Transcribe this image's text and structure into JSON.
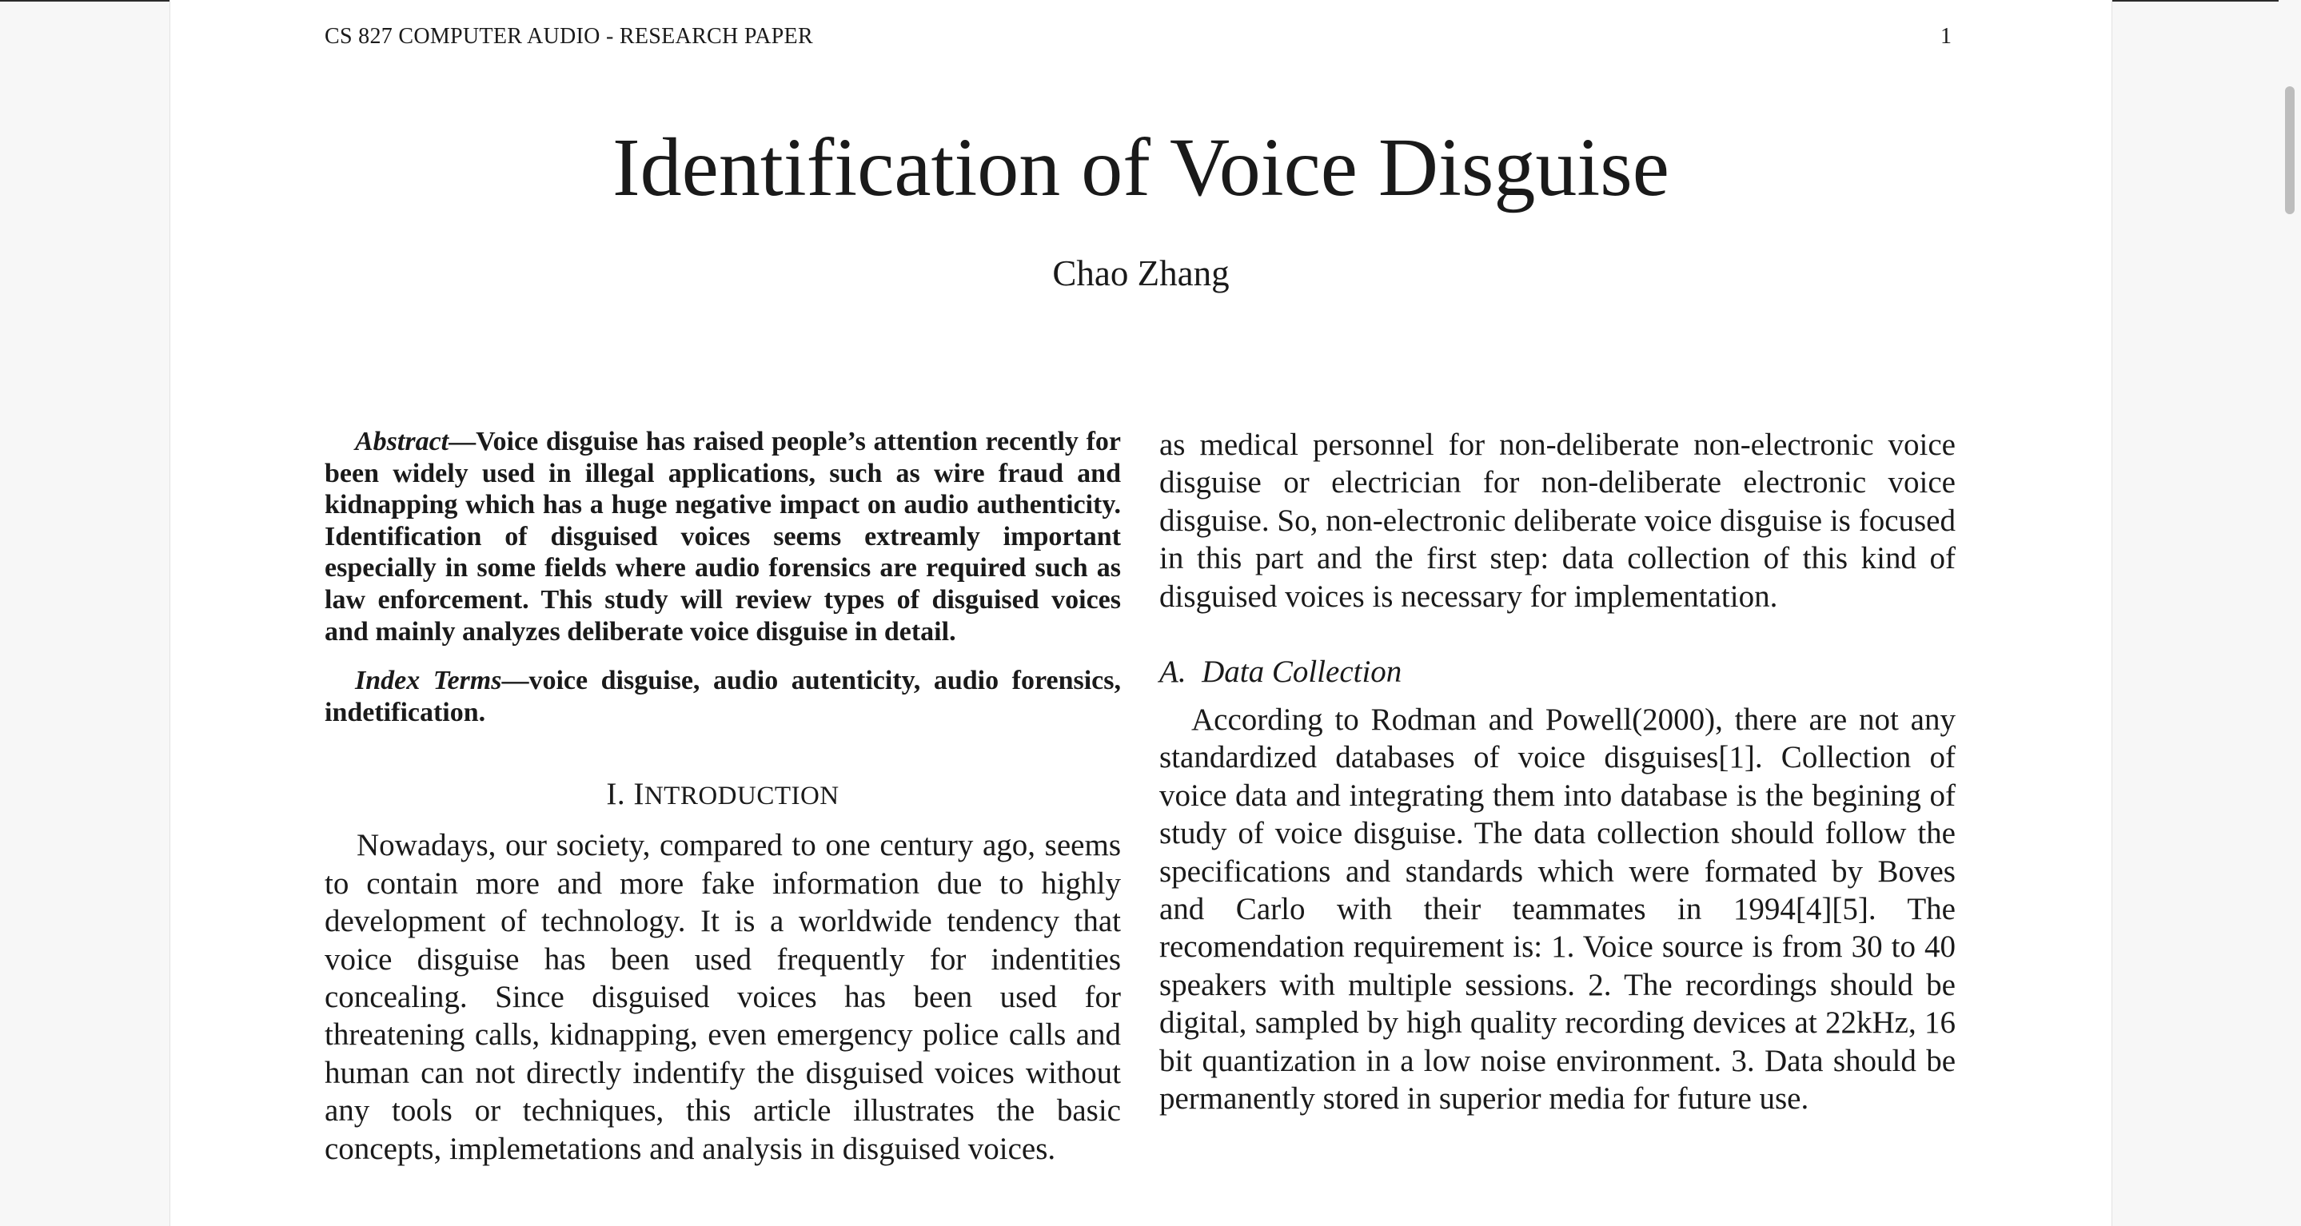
{
  "header": {
    "running_head": "CS 827 COMPUTER AUDIO - RESEARCH PAPER",
    "page_number": "1"
  },
  "paper": {
    "title": "Identification of Voice Disguise",
    "author": "Chao Zhang"
  },
  "abstract": {
    "label": "Abstract",
    "dash": "—",
    "text": "Voice disguise has raised people’s attention recently for been widely used in illegal applications, such as wire fraud and kidnapping which has a huge negative impact on audio authenticity. Identification of disguised voices seems extreamly important especially in some fields where audio forensics are required such as law enforcement. This study will review types of disguised voices and mainly analyzes deliberate voice disguise in detail."
  },
  "index_terms": {
    "label": "Index Terms",
    "dash": "—",
    "text": "voice disguise, audio autenticity, audio forensics, indetification."
  },
  "introduction": {
    "number": "I.",
    "heading_initial": "I",
    "heading_rest": "ntroduction",
    "paragraph": "Nowadays, our society, compared to one century ago, seems to contain more and more fake information due to highly development of technology. It is a worldwide tendency that voice disguise has been used frequently for indentities concealing. Since disguised voices has been used for threatening calls, kidnapping, even emergency police calls and human can not directly indentify the disguised voices without any tools or techniques, this article illustrates the basic concepts, implemetations and analysis in disguised voices."
  },
  "right_column": {
    "continuation": "as medical personnel for non-deliberate non-electronic voice disguise or electrician for non-deliberate electronic voice disguise. So, non-electronic deliberate voice disguise is focused in this part and the first step: data collection of this kind of disguised voices is necessary for implementation.",
    "subsection_label": "A.",
    "subsection_title": "Data Collection",
    "data_collection": "According to Rodman and Powell(2000), there are not any standardized databases of voice disguises[1]. Collection of voice data and integrating them into database is the begining of study of voice disguise. The data collection should follow the specifications and standards which were formated by Boves and Carlo with their teammates in 1994[4][5]. The recomendation requirement is: 1. Voice source is from 30 to 40 speakers with multiple sessions. 2. The recordings should be digital, sampled by high quality recording devices at 22kHz, 16 bit quantization in a low noise environment. 3. Data should be permanently stored in superior media for future use."
  }
}
